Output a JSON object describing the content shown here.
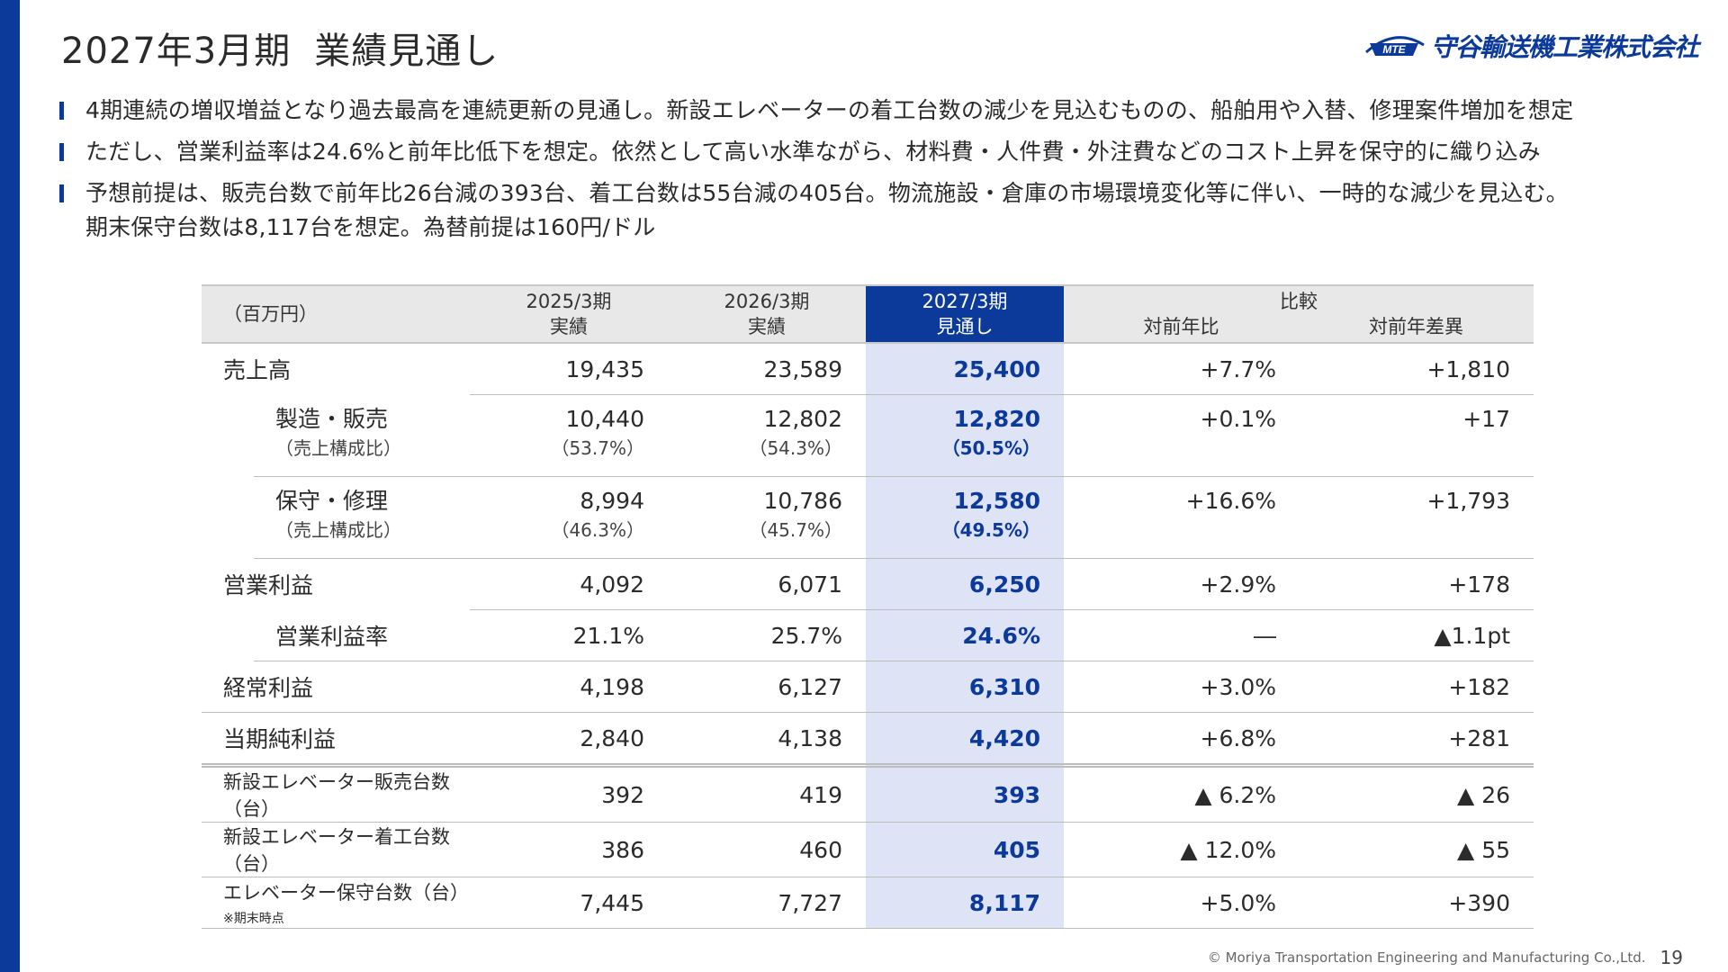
{
  "title": "2027年3月期",
  "title_suffix": "業績見通し",
  "logo": {
    "mark": "MTE",
    "company": "守谷輸送機工業株式会社",
    "color": "#0b3a9a"
  },
  "bullets": [
    {
      "lines": [
        "4期連続の増収増益となり過去最高を連続更新の見通し。新設エレベーターの着工台数の減少を見込むものの、船舶用や入替、修理案件増加を想定"
      ]
    },
    {
      "lines": [
        "ただし、営業利益率は24.6%と前年比低下を想定。依然として高い水準ながら、材料費・人件費・外注費などのコスト上昇を保守的に織り込み"
      ]
    },
    {
      "lines": [
        "予想前提は、販売台数で前年比26台減の393台、着工台数は55台減の405台。物流施設・倉庫の市場環境変化等に伴い、一時的な減少を見込む。",
        "期末保守台数は8,117台を想定。為替前提は160円/ドル"
      ]
    }
  ],
  "table": {
    "unit": "（百万円）",
    "columns": [
      {
        "period": "2025/3期",
        "type": "実績"
      },
      {
        "period": "2026/3期",
        "type": "実績"
      },
      {
        "period": "2027/3期",
        "type": "見通し"
      }
    ],
    "compare": {
      "label": "比較",
      "yoy_ratio": "対前年比",
      "yoy_diff": "対前年差異"
    },
    "rows": {
      "sales": {
        "label": "売上高",
        "v": [
          "19,435",
          "23,589",
          "25,400"
        ],
        "ratio": "+7.7%",
        "diff": "+1,810"
      },
      "mfg": {
        "label": "製造・販売",
        "sub": "（売上構成比）",
        "v": [
          "10,440",
          "12,802",
          "12,820"
        ],
        "p": [
          "（53.7%）",
          "（54.3%）",
          "（50.5%）"
        ],
        "ratio": "+0.1%",
        "diff": "+17"
      },
      "maint": {
        "label": "保守・修理",
        "sub": "（売上構成比）",
        "v": [
          "8,994",
          "10,786",
          "12,580"
        ],
        "p": [
          "（46.3%）",
          "（45.7%）",
          "（49.5%）"
        ],
        "ratio": "+16.6%",
        "diff": "+1,793"
      },
      "op": {
        "label": "営業利益",
        "v": [
          "4,092",
          "6,071",
          "6,250"
        ],
        "ratio": "+2.9%",
        "diff": "+178"
      },
      "opm": {
        "label": "営業利益率",
        "v": [
          "21.1%",
          "25.7%",
          "24.6%"
        ],
        "ratio": "―",
        "diff": "▲1.1pt"
      },
      "ord": {
        "label": "経常利益",
        "v": [
          "4,198",
          "6,127",
          "6,310"
        ],
        "ratio": "+3.0%",
        "diff": "+182"
      },
      "net": {
        "label": "当期純利益",
        "v": [
          "2,840",
          "4,138",
          "4,420"
        ],
        "ratio": "+6.8%",
        "diff": "+281"
      },
      "units_sold": {
        "label": "新設エレベーター販売台数（台）",
        "v": [
          "392",
          "419",
          "393"
        ],
        "ratio": "▲ 6.2%",
        "diff": "▲ 26"
      },
      "units_started": {
        "label": "新設エレベーター着工台数（台）",
        "v": [
          "386",
          "460",
          "405"
        ],
        "ratio": "▲ 12.0%",
        "diff": "▲ 55"
      },
      "units_maint": {
        "label": "エレベーター保守台数（台）",
        "note": "※期末時点",
        "v": [
          "7,445",
          "7,727",
          "8,117"
        ],
        "ratio": "+5.0%",
        "diff": "+390"
      }
    }
  },
  "footer": {
    "copyright": "© Moriya Transportation Engineering and Manufacturing Co.,Ltd.",
    "page": "19"
  }
}
